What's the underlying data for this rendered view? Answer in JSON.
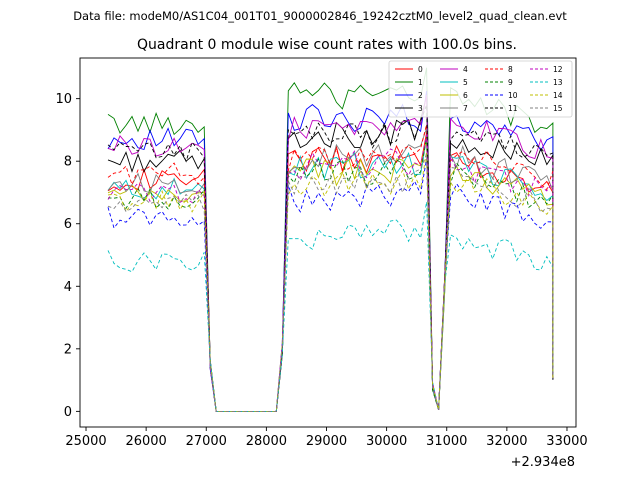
{
  "supertitle": "Data file: modeM0/AS1C04_001T01_9000002846_19242cztM0_level2_quad_clean.evt",
  "chart_data": {
    "type": "line",
    "title": "Quadrant 0 module wise count rates with 100.0s bins.",
    "xlabel": "",
    "ylabel": "",
    "x_offset_label": "+2.934e8",
    "xlim": [
      24900,
      33150
    ],
    "ylim": [
      -0.5,
      11.3
    ],
    "xticks": [
      25000,
      26000,
      27000,
      28000,
      29000,
      30000,
      31000,
      32000,
      33000
    ],
    "xtick_labels": [
      "25000",
      "26000",
      "27000",
      "28000",
      "29000",
      "30000",
      "31000",
      "32000",
      "33000"
    ],
    "yticks": [
      0,
      2,
      4,
      6,
      8,
      10
    ],
    "ytick_labels": [
      "0",
      "2",
      "4",
      "6",
      "8",
      "10"
    ],
    "grid": false,
    "legend_placement": "top-right",
    "segments": [
      {
        "start": 25365,
        "end": 26965
      },
      {
        "start": 27065,
        "end": 28165
      },
      {
        "start": 28265,
        "end": 30565
      },
      {
        "start": 30665,
        "end": 30965
      },
      {
        "start": 31065,
        "end": 32765
      }
    ],
    "gaps": [
      {
        "from": 26965,
        "to": 27065,
        "fraction": 0.62
      },
      {
        "from": 28165,
        "to": 28265,
        "fraction": 0.22
      },
      {
        "from": 30565,
        "to": 30665,
        "fraction": 0.55
      },
      {
        "from": 30965,
        "to": 31065,
        "fraction": 0.35
      },
      {
        "from": 32765,
        "to": 32765,
        "fraction": 0.0
      }
    ],
    "series": [
      {
        "name": "0",
        "color": "#ff0000",
        "style": "solid",
        "base": [
          7.4,
          8.0,
          8.1,
          7.5
        ]
      },
      {
        "name": "1",
        "color": "#008000",
        "style": "solid",
        "base": [
          9.2,
          10.2,
          10.0,
          9.4
        ]
      },
      {
        "name": "2",
        "color": "#0000ff",
        "style": "solid",
        "base": [
          8.7,
          9.4,
          9.4,
          8.8
        ]
      },
      {
        "name": "3",
        "color": "#000000",
        "style": "solid",
        "base": [
          8.0,
          8.8,
          8.9,
          8.2
        ]
      },
      {
        "name": "4",
        "color": "#bf00bf",
        "style": "solid",
        "base": [
          8.5,
          9.0,
          9.2,
          8.6
        ]
      },
      {
        "name": "5",
        "color": "#00bfbf",
        "style": "solid",
        "base": [
          7.1,
          7.8,
          7.9,
          7.3
        ]
      },
      {
        "name": "6",
        "color": "#bfbf00",
        "style": "solid",
        "base": [
          6.9,
          7.6,
          7.8,
          7.1
        ]
      },
      {
        "name": "7",
        "color": "#808080",
        "style": "solid",
        "base": [
          7.3,
          8.1,
          8.2,
          7.6
        ]
      },
      {
        "name": "8",
        "color": "#ff0000",
        "style": "dashed",
        "base": [
          7.6,
          8.0,
          8.2,
          7.7
        ]
      },
      {
        "name": "9",
        "color": "#008000",
        "style": "dashed",
        "base": [
          6.8,
          7.6,
          7.7,
          7.0
        ]
      },
      {
        "name": "10",
        "color": "#0000ff",
        "style": "dashed",
        "base": [
          6.2,
          6.8,
          7.0,
          6.4
        ]
      },
      {
        "name": "11",
        "color": "#000000",
        "style": "dashed",
        "base": [
          8.3,
          8.8,
          8.9,
          8.4
        ]
      },
      {
        "name": "12",
        "color": "#bf00bf",
        "style": "dashed",
        "base": [
          7.0,
          7.8,
          8.0,
          7.3
        ]
      },
      {
        "name": "13",
        "color": "#00bfbf",
        "style": "dashed",
        "base": [
          4.8,
          5.6,
          5.8,
          5.0
        ]
      },
      {
        "name": "14",
        "color": "#bfbf00",
        "style": "dashed",
        "base": [
          6.7,
          7.2,
          7.3,
          6.8
        ]
      },
      {
        "name": "15",
        "color": "#808080",
        "style": "dashed",
        "base": [
          6.6,
          7.3,
          7.4,
          6.9
        ]
      }
    ]
  }
}
